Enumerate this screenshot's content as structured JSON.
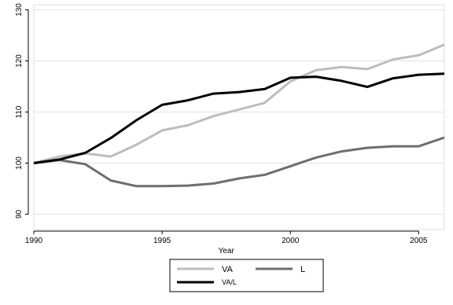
{
  "chart_data": {
    "type": "line",
    "title": "",
    "xlabel": "Year",
    "ylabel": "",
    "xlim": [
      1990,
      2006
    ],
    "ylim": [
      87,
      131
    ],
    "xticks": [
      1990,
      1995,
      2000,
      2005
    ],
    "yticks": [
      90,
      100,
      110,
      120,
      130
    ],
    "grid": "horizontal",
    "legend_position": "bottom",
    "x": [
      1990,
      1991,
      1992,
      1993,
      1994,
      1995,
      1996,
      1997,
      1998,
      1999,
      2000,
      2001,
      2002,
      2003,
      2004,
      2005,
      2006
    ],
    "series": [
      {
        "name": "VA",
        "color": "#bdbdbd",
        "values": [
          100.0,
          101.3,
          101.9,
          101.3,
          103.6,
          106.4,
          107.4,
          109.2,
          110.5,
          111.8,
          116.0,
          118.2,
          118.8,
          118.4,
          120.3,
          121.1,
          123.2
        ]
      },
      {
        "name": "L",
        "color": "#6e6e6e",
        "values": [
          100.0,
          100.6,
          99.8,
          96.6,
          95.5,
          95.5,
          95.6,
          96.0,
          97.0,
          97.7,
          99.4,
          101.1,
          102.3,
          103.0,
          103.3,
          103.3,
          105.0
        ]
      },
      {
        "name": "VA/L",
        "color": "#000000",
        "values": [
          100.0,
          100.7,
          102.0,
          104.9,
          108.4,
          111.4,
          112.3,
          113.6,
          113.9,
          114.5,
          116.7,
          116.9,
          116.1,
          114.9,
          116.6,
          117.3,
          117.5
        ]
      }
    ]
  }
}
